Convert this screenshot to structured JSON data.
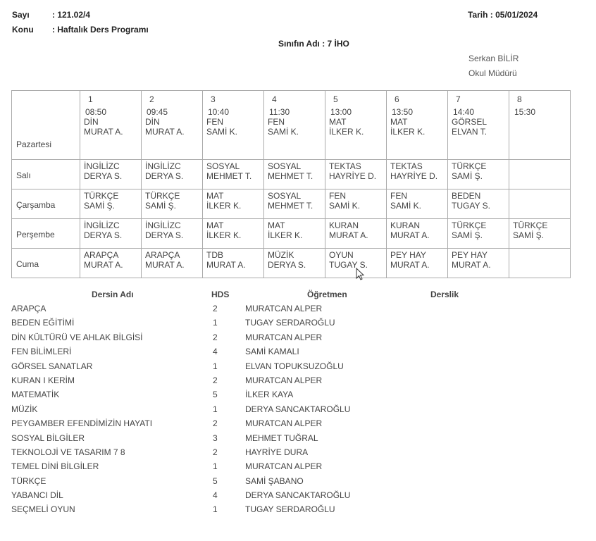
{
  "header": {
    "sayi_label": "Sayı",
    "sayi_value": ": 121.02/4",
    "konu_label": "Konu",
    "konu_value": ": Haftalık Ders Programı",
    "tarih": "Tarih  :  05/01/2024",
    "class_name": "Sınıfın Adı : 7 İHO",
    "signer_name": "Serkan BİLİR",
    "signer_title": "Okul Müdürü"
  },
  "schedule": {
    "periods": [
      {
        "num": "1",
        "time": "08:50"
      },
      {
        "num": "2",
        "time": "09:45"
      },
      {
        "num": "3",
        "time": "10:40"
      },
      {
        "num": "4",
        "time": "11:30"
      },
      {
        "num": "5",
        "time": "13:00"
      },
      {
        "num": "6",
        "time": "13:50"
      },
      {
        "num": "7",
        "time": "14:40"
      },
      {
        "num": "8",
        "time": "15:30"
      }
    ],
    "days": [
      {
        "name": "Pazartesi",
        "cells": [
          [
            "DİN",
            "MURAT A."
          ],
          [
            "DİN",
            "MURAT A."
          ],
          [
            "FEN",
            "SAMİ K."
          ],
          [
            "FEN",
            "SAMİ K."
          ],
          [
            "MAT",
            "İLKER K."
          ],
          [
            "MAT",
            "İLKER K."
          ],
          [
            "GÖRSEL",
            "ELVAN T."
          ],
          [
            "",
            ""
          ]
        ]
      },
      {
        "name": "Salı",
        "cells": [
          [
            "İNGİLİZC",
            "DERYA S."
          ],
          [
            "İNGİLİZC",
            "DERYA S."
          ],
          [
            "SOSYAL",
            "MEHMET T."
          ],
          [
            "SOSYAL",
            "MEHMET T."
          ],
          [
            "TEKTAS",
            "HAYRİYE D."
          ],
          [
            "TEKTAS",
            "HAYRİYE D."
          ],
          [
            "TÜRKÇE",
            "SAMİ Ş."
          ],
          [
            "",
            ""
          ]
        ]
      },
      {
        "name": "Çarşamba",
        "cells": [
          [
            "TÜRKÇE",
            "SAMİ Ş."
          ],
          [
            "TÜRKÇE",
            "SAMİ Ş."
          ],
          [
            "MAT",
            "İLKER K."
          ],
          [
            "SOSYAL",
            "MEHMET T."
          ],
          [
            "FEN",
            "SAMİ K."
          ],
          [
            "FEN",
            "SAMİ K."
          ],
          [
            "BEDEN",
            "TUGAY S."
          ],
          [
            "",
            ""
          ]
        ]
      },
      {
        "name": "Perşembe",
        "cells": [
          [
            "İNGİLİZC",
            "DERYA S."
          ],
          [
            "İNGİLİZC",
            "DERYA S."
          ],
          [
            "MAT",
            "İLKER K."
          ],
          [
            "MAT",
            "İLKER K."
          ],
          [
            "KURAN",
            "MURAT A."
          ],
          [
            "KURAN",
            "MURAT A."
          ],
          [
            "TÜRKÇE",
            "SAMİ Ş."
          ],
          [
            "TÜRKÇE",
            "SAMİ Ş."
          ]
        ]
      },
      {
        "name": "Cuma",
        "cells": [
          [
            "ARAPÇA",
            "MURAT A."
          ],
          [
            "ARAPÇA",
            "MURAT A."
          ],
          [
            "TDB",
            "MURAT A."
          ],
          [
            "MÜZİK",
            "DERYA S."
          ],
          [
            "OYUN",
            "TUGAY S."
          ],
          [
            "PEY HAY",
            "MURAT A."
          ],
          [
            "PEY HAY",
            "MURAT A."
          ],
          [
            "",
            ""
          ]
        ]
      }
    ]
  },
  "courses": {
    "headers": {
      "name": "Dersin Adı",
      "hds": "HDS",
      "teacher": "Öğretmen",
      "room": "Derslik"
    },
    "rows": [
      {
        "name": "ARAPÇA",
        "hds": "2",
        "teacher": "MURATCAN ALPER"
      },
      {
        "name": "BEDEN EĞİTİMİ",
        "hds": "1",
        "teacher": "TUGAY SERDAROĞLU"
      },
      {
        "name": "DİN KÜLTÜRÜ VE AHLAK BİLGİSİ",
        "hds": "2",
        "teacher": "MURATCAN ALPER"
      },
      {
        "name": "FEN BİLİMLERİ",
        "hds": "4",
        "teacher": "SAMİ KAMALI"
      },
      {
        "name": "GÖRSEL SANATLAR",
        "hds": "1",
        "teacher": "ELVAN TOPUKSUZOĞLU"
      },
      {
        "name": "KURAN I KERİM",
        "hds": "2",
        "teacher": "MURATCAN ALPER"
      },
      {
        "name": "MATEMATİK",
        "hds": "5",
        "teacher": "İLKER KAYA"
      },
      {
        "name": "MÜZİK",
        "hds": "1",
        "teacher": "DERYA SANCAKTAROĞLU"
      },
      {
        "name": "PEYGAMBER EFENDİMİZİN HAYATI",
        "hds": "2",
        "teacher": "MURATCAN ALPER"
      },
      {
        "name": "SOSYAL BİLGİLER",
        "hds": "3",
        "teacher": "MEHMET TUĞRAL"
      },
      {
        "name": "TEKNOLOJİ VE TASARIM 7 8",
        "hds": "2",
        "teacher": "HAYRİYE DURA"
      },
      {
        "name": "TEMEL DİNİ BİLGİLER",
        "hds": "1",
        "teacher": "MURATCAN ALPER"
      },
      {
        "name": "TÜRKÇE",
        "hds": "5",
        "teacher": "SAMİ ŞABANO"
      },
      {
        "name": "YABANCI DİL",
        "hds": "4",
        "teacher": "DERYA SANCAKTAROĞLU"
      },
      {
        "name": "SEÇMELİ OYUN",
        "hds": "1",
        "teacher": "TUGAY SERDAROĞLU"
      }
    ]
  }
}
